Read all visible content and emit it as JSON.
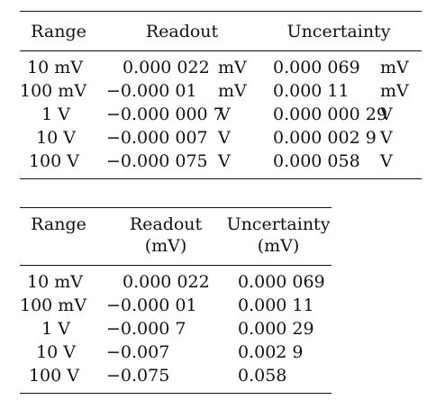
{
  "table1": {
    "headers": {
      "range": "Range",
      "readout": "Readout",
      "uncertainty": "Uncertainty"
    },
    "rows": [
      {
        "range": "10 mV",
        "readout": "0.000 022",
        "readout_unit": "mV",
        "uncertainty": "0.000 069",
        "uncertainty_unit": "mV"
      },
      {
        "range": "100 mV",
        "readout": "−0.000 01",
        "readout_unit": "mV",
        "uncertainty": "0.000 11",
        "uncertainty_unit": "mV"
      },
      {
        "range": "1 V",
        "readout": "−0.000 000 7",
        "readout_unit": "V",
        "uncertainty": "0.000 000 29",
        "uncertainty_unit": "V"
      },
      {
        "range": "10 V",
        "readout": "−0.000 007",
        "readout_unit": "V",
        "uncertainty": "0.000 002 9",
        "uncertainty_unit": "V"
      },
      {
        "range": "100 V",
        "readout": "−0.000 075",
        "readout_unit": "V",
        "uncertainty": "0.000 058",
        "uncertainty_unit": "V"
      }
    ]
  },
  "table2": {
    "headers": {
      "range": "Range",
      "readout": "Readout",
      "readout_unit": "(mV)",
      "uncertainty": "Uncertainty",
      "uncertainty_unit": "(mV)"
    },
    "rows": [
      {
        "range": "10 mV",
        "readout": "0.000 022",
        "uncertainty": "0.000 069"
      },
      {
        "range": "100 mV",
        "readout": "−0.000 01",
        "uncertainty": "0.000 11"
      },
      {
        "range": "1 V",
        "readout": "−0.000 7",
        "uncertainty": "0.000 29"
      },
      {
        "range": "10 V",
        "readout": "−0.007",
        "uncertainty": "0.002 9"
      },
      {
        "range": "100 V",
        "readout": "−0.075",
        "uncertainty": "0.058"
      }
    ]
  }
}
